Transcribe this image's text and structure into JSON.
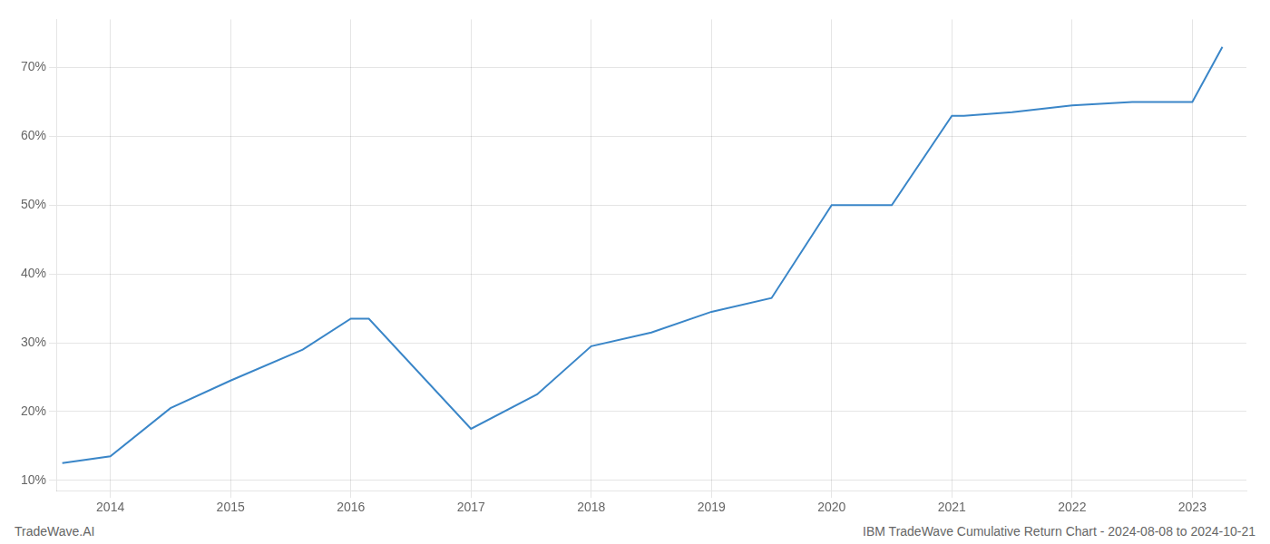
{
  "chart_data": {
    "type": "line",
    "title": "IBM TradeWave Cumulative Return Chart - 2024-08-08 to 2024-10-21",
    "annotations": [
      "TradeWave.AI"
    ],
    "x": [
      2013.6,
      2014.0,
      2014.5,
      2015.0,
      2015.6,
      2016.0,
      2016.15,
      2017.0,
      2017.55,
      2018.0,
      2018.5,
      2019.0,
      2019.5,
      2020.0,
      2020.5,
      2021.0,
      2021.1,
      2021.5,
      2022.0,
      2022.5,
      2023.0,
      2023.25
    ],
    "values": [
      12.5,
      13.5,
      20.5,
      24.5,
      29.0,
      33.5,
      33.5,
      17.5,
      22.5,
      29.5,
      31.5,
      34.5,
      36.5,
      50.0,
      50.0,
      63.0,
      63.0,
      63.5,
      64.5,
      65.0,
      65.0,
      73.0
    ],
    "color": "#3a86c8",
    "xlim": [
      2013.55,
      2023.45
    ],
    "xticks": [
      2014,
      2015,
      2016,
      2017,
      2018,
      2019,
      2020,
      2021,
      2022,
      2023
    ],
    "ylim": [
      8.5,
      77
    ],
    "yticks": [
      {
        "value": 10,
        "label": "10%"
      },
      {
        "value": 20,
        "label": "20%"
      },
      {
        "value": 30,
        "label": "30%"
      },
      {
        "value": 40,
        "label": "40%"
      },
      {
        "value": 50,
        "label": "50%"
      },
      {
        "value": 60,
        "label": "60%"
      },
      {
        "value": 70,
        "label": "70%"
      }
    ],
    "grid": true
  }
}
